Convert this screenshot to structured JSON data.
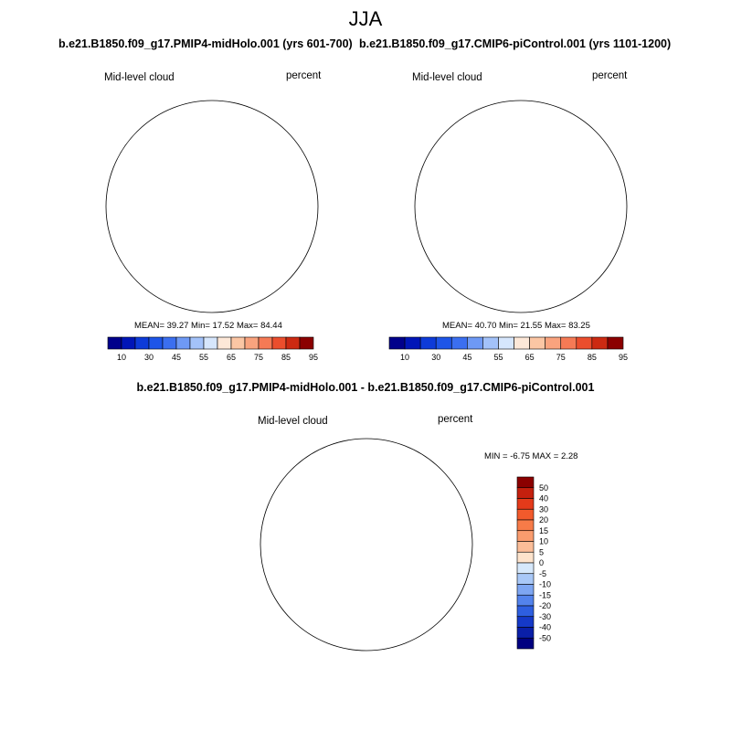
{
  "page": {
    "season": "JJA"
  },
  "panels": [
    {
      "case_title": "b.e21.B1850.f09_g17.PMIP4-midHolo.001 (yrs 601-700)",
      "variable": "Mid-level cloud",
      "units": "percent",
      "stats_text": "MEAN=  39.27   Min=  17.52   Max=  84.44",
      "stats": {
        "mean": 39.27,
        "min": 17.52,
        "max": 84.44
      }
    },
    {
      "case_title": "b.e21.B1850.f09_g17.CMIP6-piControl.001 (yrs 1101-1200)",
      "variable": "Mid-level cloud",
      "units": "percent",
      "stats_text": "MEAN=  40.70   Min=  21.55   Max=  83.25",
      "stats": {
        "mean": 40.7,
        "min": 21.55,
        "max": 83.25
      }
    }
  ],
  "colorbar_abs": {
    "tick_labels": [
      "10",
      "30",
      "45",
      "55",
      "65",
      "75",
      "85",
      "95"
    ],
    "colors": [
      "#00008B",
      "#0016B8",
      "#0D3BD9",
      "#1E55E8",
      "#3B6FF0",
      "#6E99F5",
      "#A3C2F9",
      "#D6E6FC",
      "#FDE8D8",
      "#FBC6A4",
      "#F9A37E",
      "#F57A55",
      "#EB4E2D",
      "#CC2A12",
      "#8B0000"
    ]
  },
  "diff_panel": {
    "title": "b.e21.B1850.f09_g17.PMIP4-midHolo.001 - b.e21.B1850.f09_g17.CMIP6-piControl.001",
    "variable": "Mid-level cloud",
    "units": "percent",
    "stats_text": "MIN =  -6.75 MAX =   2.28",
    "stats": {
      "min": -6.75,
      "max": 2.28
    }
  },
  "colorbar_diff": {
    "tick_labels": [
      "50",
      "40",
      "30",
      "20",
      "15",
      "10",
      "5",
      "0",
      "-5",
      "-10",
      "-15",
      "-20",
      "-30",
      "-40",
      "-50"
    ],
    "colors": [
      "#8B0000",
      "#C4200E",
      "#E43A1A",
      "#F25A2C",
      "#F77B48",
      "#FA9C6E",
      "#FBBD98",
      "#FDE3CC",
      "#D6E8FB",
      "#A9C8F7",
      "#7EA6F2",
      "#5383EC",
      "#2E5FE0",
      "#1539C8",
      "#0A1FA8",
      "#000080"
    ]
  },
  "colors": {
    "ocean_abs": "#2A5FE8",
    "ocean_diff": "#D6E8FB",
    "positive_diff": "#FDE3CC",
    "coast": "#000000"
  }
}
